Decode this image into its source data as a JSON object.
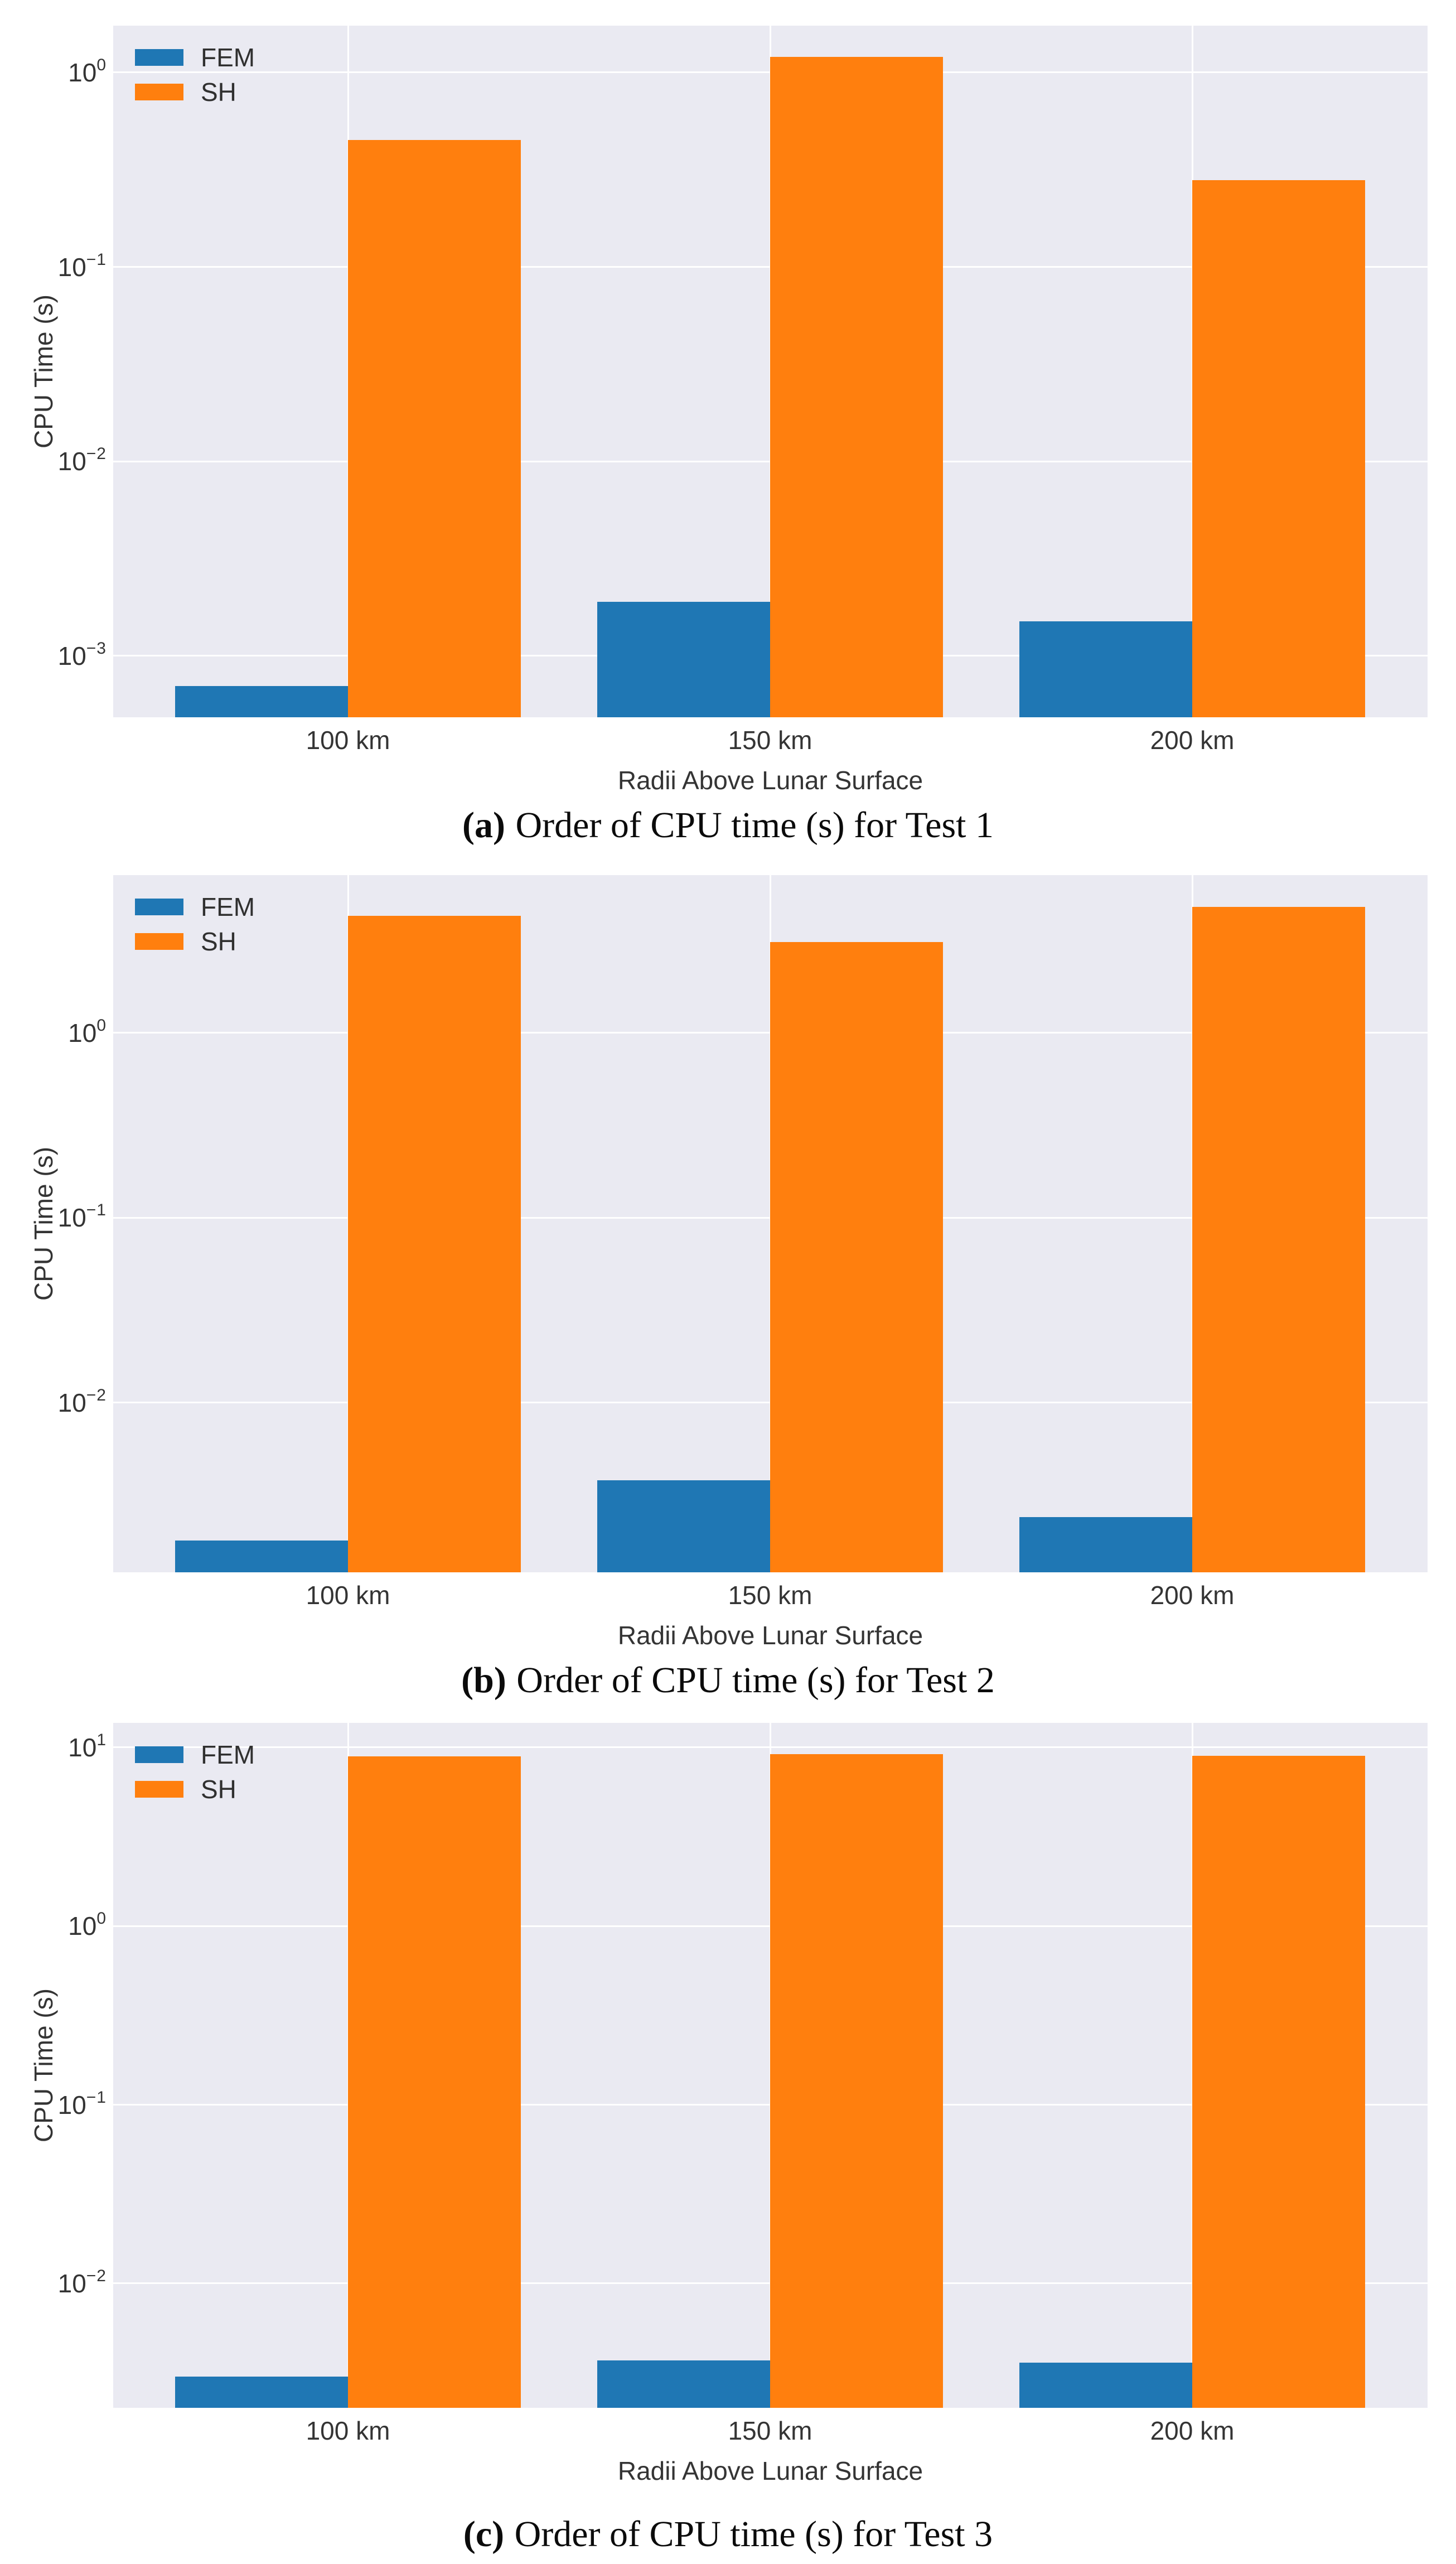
{
  "colors": {
    "fem": "#1f77b4",
    "sh": "#ff7f0e",
    "panel_background": "#eaeaf2",
    "gridline": "#ffffff",
    "axis_text": "#343434",
    "caption_text": "#0b0b0b"
  },
  "chart_data": [
    {
      "type": "bar",
      "log_y": true,
      "title": "",
      "caption": {
        "label": "(a)",
        "text": "Order of CPU time (s) for Test 1"
      },
      "xlabel": "Radii Above Lunar Surface",
      "ylabel": "CPU Time (s)",
      "categories": [
        "100 km",
        "150 km",
        "200 km"
      ],
      "series": [
        {
          "name": "FEM",
          "color": "#1f77b4",
          "values": [
            0.0007,
            0.0019,
            0.0015
          ]
        },
        {
          "name": "SH",
          "color": "#ff7f0e",
          "values": [
            0.45,
            1.2,
            0.28
          ]
        }
      ],
      "ylim": [
        0.000483,
        1.74
      ],
      "yticks_exponents": [
        0,
        -1,
        -2,
        -3
      ],
      "grid": true,
      "legend_position": "upper left"
    },
    {
      "type": "bar",
      "log_y": true,
      "title": "",
      "caption": {
        "label": "(b)",
        "text": "Order of CPU time (s) for Test 2"
      },
      "xlabel": "Radii Above Lunar Surface",
      "ylabel": "CPU Time (s)",
      "categories": [
        "100 km",
        "150 km",
        "200 km"
      ],
      "series": [
        {
          "name": "FEM",
          "color": "#1f77b4",
          "values": [
            0.0018,
            0.0038,
            0.0024
          ]
        },
        {
          "name": "SH",
          "color": "#ff7f0e",
          "values": [
            4.3,
            3.1,
            4.8
          ]
        }
      ],
      "ylim": [
        0.00121,
        7.12
      ],
      "yticks_exponents": [
        0,
        -1,
        -2
      ],
      "grid": true,
      "legend_position": "upper left"
    },
    {
      "type": "bar",
      "log_y": true,
      "title": "",
      "caption": {
        "label": "(c)",
        "text": "Order of CPU time (s) for Test 3"
      },
      "xlabel": "Radii Above Lunar Surface",
      "ylabel": "CPU Time (s)",
      "categories": [
        "100 km",
        "150 km",
        "200 km"
      ],
      "series": [
        {
          "name": "FEM",
          "color": "#1f77b4",
          "values": [
            0.003,
            0.0037,
            0.0036
          ]
        },
        {
          "name": "SH",
          "color": "#ff7f0e",
          "values": [
            8.9,
            9.2,
            9.0
          ]
        }
      ],
      "ylim": [
        0.00201,
        13.72
      ],
      "yticks_exponents": [
        1,
        0,
        -1,
        -2
      ],
      "grid": true,
      "legend_position": "upper left"
    }
  ]
}
